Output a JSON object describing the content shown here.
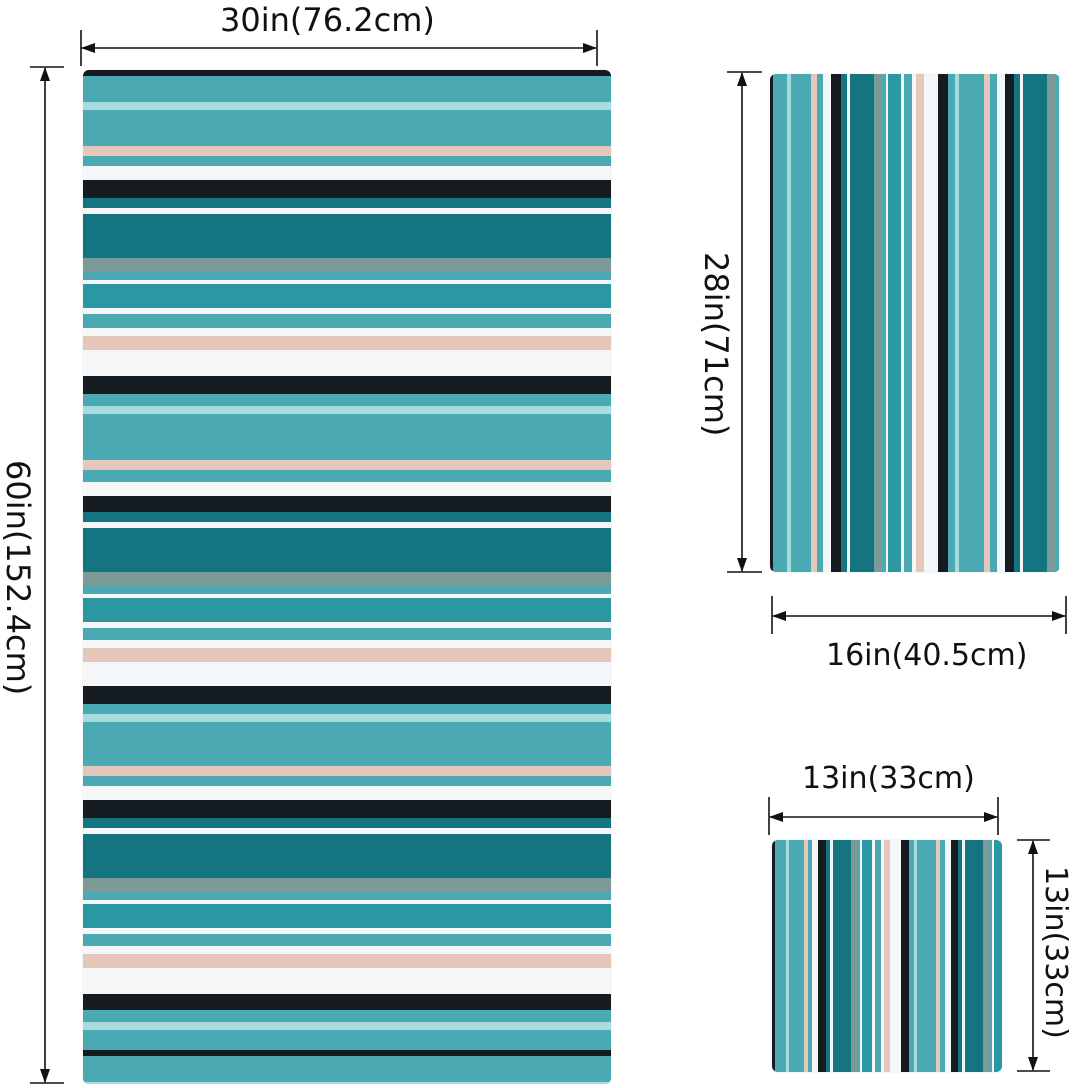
{
  "palette": {
    "teal_light": "#4aa9b3",
    "teal_mid": "#2b97a3",
    "teal_dark": "#147580",
    "pink": "#e6c7bc",
    "white": "#f4f6f7",
    "black": "#141b21",
    "ice": "#a8dcdc",
    "gray": "#7c9a98"
  },
  "bath_towel": {
    "width_label": "30in(76.2cm)",
    "height_label": "60in(152.4cm)"
  },
  "hand_towel": {
    "height_label": "28in(71cm)",
    "width_label": "16in(40.5cm)"
  },
  "washcloth": {
    "width_label": "13in(33cm)",
    "height_label": "13in(33cm)"
  }
}
